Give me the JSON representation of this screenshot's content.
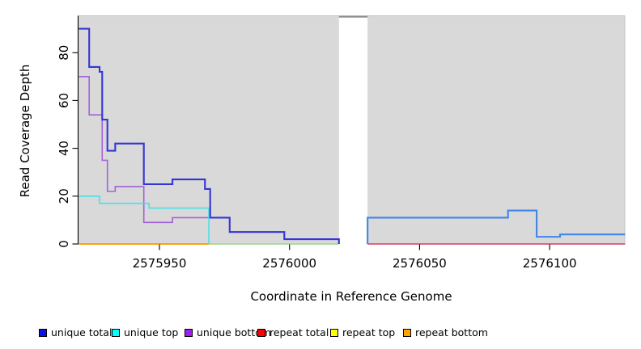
{
  "figure": {
    "x_axis_label": "Coordinate in Reference Genome",
    "y_axis_label": "Read Coverage Depth"
  },
  "chart_data": {
    "type": "line",
    "subtype": "step-function coverage plot",
    "title": "",
    "xlabel": "Coordinate in Reference Genome",
    "ylabel": "Read Coverage Depth",
    "xlim": [
      2575919,
      2576129
    ],
    "ylim": [
      0,
      90
    ],
    "x_ticks": [
      2575950,
      2576000,
      2576050,
      2576100
    ],
    "y_ticks": [
      0,
      20,
      40,
      60,
      80
    ],
    "grid": false,
    "legend_position": "bottom",
    "plot_bg": "#d9d9d9",
    "masked_region": {
      "x_start": 2576019,
      "x_end": 2576030,
      "fill": "#ffffff",
      "top_bar_color": "#8e8e8e"
    },
    "legend": [
      {
        "label": "unique total",
        "color": "#1010e0"
      },
      {
        "label": "unique top",
        "color": "#00ffff"
      },
      {
        "label": "unique bottom",
        "color": "#a020f0"
      },
      {
        "label": "repeat total",
        "color": "#ff0000"
      },
      {
        "label": "repeat top",
        "color": "#ffff00"
      },
      {
        "label": "repeat bottom",
        "color": "#ffa500"
      }
    ],
    "series_notes": "Steps are [start_coordinate, depth]; value holds until next step. Repeat series are 0 across the plotted range. unique bottom equals unique total right of 2575970; unique top equals 0 right of 2575969 (baseline appears green over yellow) ; right panel unique total appears lighter blue (unique top coincident).",
    "strokes": [
      {
        "series": "repeat top",
        "color": "#f3e14a",
        "width": 1.5,
        "steps": [
          [
            2575919,
            0
          ]
        ],
        "end": 2576019
      },
      {
        "series": "repeat bottom",
        "color": "#ff9800",
        "width": 1.8,
        "steps": [
          [
            2575919,
            0
          ]
        ],
        "end": 2575969
      },
      {
        "series": "unique top zero tail",
        "color": "#98d5a4",
        "width": 1.6,
        "steps": [
          [
            2575969,
            0
          ]
        ],
        "end": 2576019
      },
      {
        "series": "repeat total",
        "color": "#d63a60",
        "width": 1.6,
        "steps": [
          [
            2576030,
            0
          ]
        ],
        "end": 2576129
      },
      {
        "series": "unique bottom",
        "color": "#a561d8",
        "width": 1.6,
        "steps": [
          [
            2575919,
            70
          ],
          [
            2575923,
            54
          ],
          [
            2575928,
            35
          ],
          [
            2575930,
            22
          ],
          [
            2575933,
            24
          ],
          [
            2575944,
            9
          ],
          [
            2575955,
            11
          ],
          [
            2575977,
            5
          ],
          [
            2575998,
            2
          ]
        ],
        "end": 2576019,
        "drop_to_zero_at_end": true
      },
      {
        "series": "unique top",
        "color": "#45e2e6",
        "width": 1.6,
        "steps": [
          [
            2575919,
            20
          ],
          [
            2575927,
            17
          ],
          [
            2575946,
            15
          ]
        ],
        "end": 2575969,
        "drop_to_zero_at_end": true
      },
      {
        "series": "unique total",
        "color": "#3535d6",
        "width": 2.1,
        "steps": [
          [
            2575919,
            90
          ],
          [
            2575923,
            74
          ],
          [
            2575927,
            72
          ],
          [
            2575928,
            52
          ],
          [
            2575930,
            39
          ],
          [
            2575933,
            42
          ],
          [
            2575944,
            25
          ],
          [
            2575955,
            27
          ],
          [
            2575967.5,
            23
          ],
          [
            2575969.5,
            11
          ],
          [
            2575977,
            5
          ],
          [
            2575998,
            2
          ]
        ],
        "end": 2576019,
        "drop_to_zero_at_end": true
      },
      {
        "series": "unique total (right panel)",
        "color": "#4185e8",
        "width": 2.1,
        "steps": [
          [
            2576030,
            11
          ],
          [
            2576084,
            14
          ],
          [
            2576095,
            3
          ],
          [
            2576104,
            4
          ]
        ],
        "end": 2576129,
        "rise_from_zero_at_start": true
      }
    ]
  }
}
